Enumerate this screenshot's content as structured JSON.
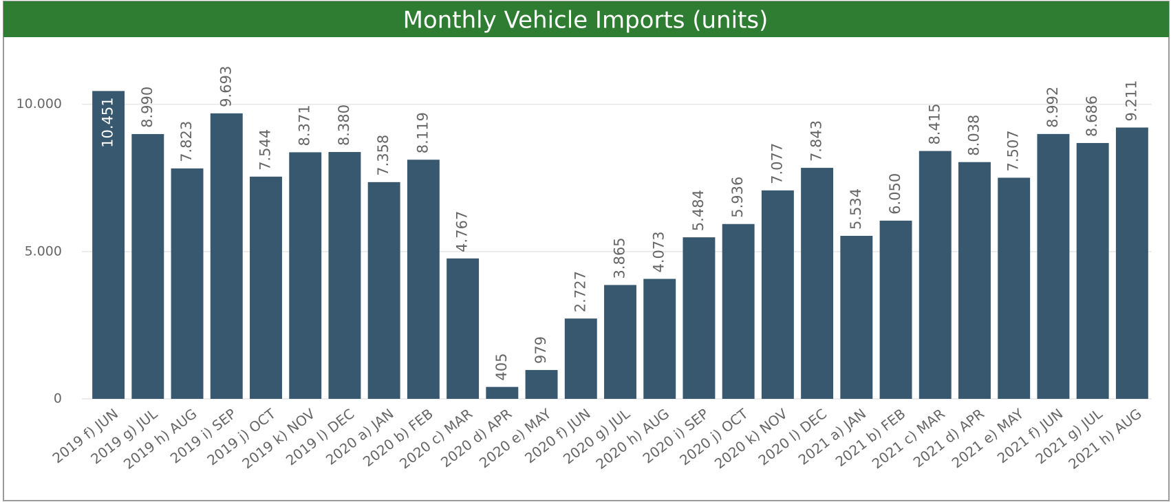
{
  "chart_data": {
    "type": "bar",
    "title": "Monthly Vehicle Imports (units)",
    "categories": [
      "2019 f) JUN",
      "2019 g) JUL",
      "2019 h) AUG",
      "2019 i) SEP",
      "2019 j) OCT",
      "2019 k) NOV",
      "2019 l) DEC",
      "2020 a) JAN",
      "2020 b) FEB",
      "2020 c) MAR",
      "2020 d) APR",
      "2020 e) MAY",
      "2020 f) JUN",
      "2020 g) JUL",
      "2020 h) AUG",
      "2020 i) SEP",
      "2020 j) OCT",
      "2020 k) NOV",
      "2020 l) DEC",
      "2021 a) JAN",
      "2021 b) FEB",
      "2021 c) MAR",
      "2021 d) APR",
      "2021 e) MAY",
      "2021 f) JUN",
      "2021 g) JUL",
      "2021 h) AUG"
    ],
    "values": [
      10451,
      8990,
      7823,
      9693,
      7544,
      8371,
      8380,
      7358,
      8119,
      4767,
      405,
      979,
      2727,
      3865,
      4073,
      5484,
      5936,
      7077,
      7843,
      5534,
      6050,
      8415,
      8038,
      7507,
      8992,
      8686,
      9211
    ],
    "value_labels": [
      "10.451",
      "8.990",
      "7.823",
      "9.693",
      "7.544",
      "8.371",
      "8.380",
      "7.358",
      "8.119",
      "4.767",
      "405",
      "979",
      "2.727",
      "3.865",
      "4.073",
      "5.484",
      "5.936",
      "7.077",
      "7.843",
      "5.534",
      "6.050",
      "8.415",
      "8.038",
      "7.507",
      "8.992",
      "8.686",
      "9.211"
    ],
    "color": "#385870",
    "ylim": [
      0,
      12000
    ],
    "yticks": [
      0,
      {
        "value": 5000,
        "label": "5.000"
      },
      {
        "value": 10000,
        "label": "10.000"
      }
    ],
    "grid": true
  }
}
